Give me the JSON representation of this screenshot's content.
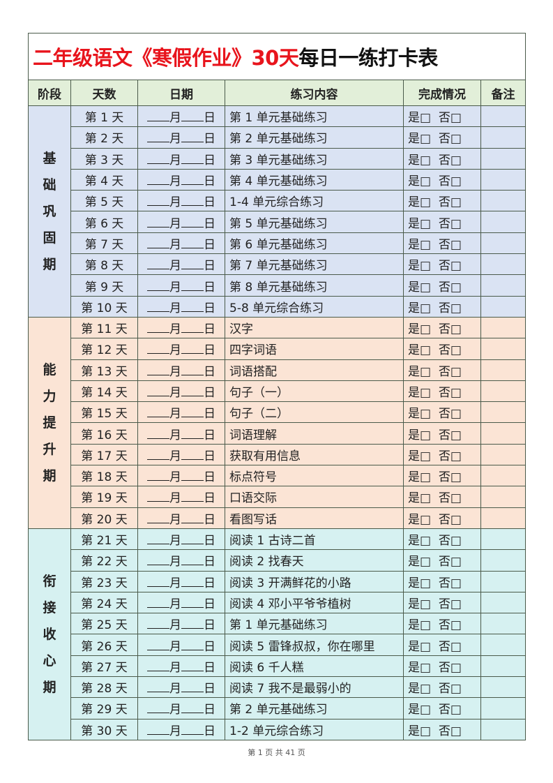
{
  "title": {
    "red_part": "二年级语文《寒假作业》30天",
    "black_part": "每日一练打卡表"
  },
  "headers": [
    "阶段",
    "天数",
    "日期",
    "练习内容",
    "完成情况",
    "备注"
  ],
  "date_template": {
    "month": "月",
    "day": "日"
  },
  "status_options": {
    "yes": "是□",
    "no": "否□"
  },
  "colors": {
    "title_red": "#e8141c",
    "header_bg": "#e2efd9",
    "stage1_bg": "#dae3f3",
    "stage2_bg": "#fbe4d5",
    "stage3_bg": "#d6f1f1"
  },
  "stages": [
    {
      "name": "基础巩固期",
      "rows": [
        {
          "day": "第 1 天",
          "content": "第 1 单元基础练习"
        },
        {
          "day": "第 2 天",
          "content": "第 2 单元基础练习"
        },
        {
          "day": "第 3 天",
          "content": "第 3 单元基础练习"
        },
        {
          "day": "第 4 天",
          "content": "第 4 单元基础练习"
        },
        {
          "day": "第 5 天",
          "content": "1-4 单元综合练习"
        },
        {
          "day": "第 6 天",
          "content": "第 5 单元基础练习"
        },
        {
          "day": "第 7 天",
          "content": "第 6 单元基础练习"
        },
        {
          "day": "第 8 天",
          "content": "第 7 单元基础练习"
        },
        {
          "day": "第 9 天",
          "content": "第 8 单元基础练习"
        },
        {
          "day": "第 10 天",
          "content": "5-8 单元综合练习"
        }
      ]
    },
    {
      "name": "能力提升期",
      "rows": [
        {
          "day": "第 11 天",
          "content": "汉字"
        },
        {
          "day": "第 12 天",
          "content": "四字词语"
        },
        {
          "day": "第 13 天",
          "content": "词语搭配"
        },
        {
          "day": "第 14 天",
          "content": "句子（一）"
        },
        {
          "day": "第 15 天",
          "content": "句子（二）"
        },
        {
          "day": "第 16 天",
          "content": "词语理解"
        },
        {
          "day": "第 17 天",
          "content": "获取有用信息"
        },
        {
          "day": "第 18 天",
          "content": "标点符号"
        },
        {
          "day": "第 19 天",
          "content": "口语交际"
        },
        {
          "day": "第 20 天",
          "content": "看图写话"
        }
      ]
    },
    {
      "name": "衔接收心期",
      "rows": [
        {
          "day": "第 21 天",
          "content": "阅读 1  古诗二首"
        },
        {
          "day": "第 22 天",
          "content": "阅读 2  找春天"
        },
        {
          "day": "第 23 天",
          "content": "阅读 3  开满鲜花的小路"
        },
        {
          "day": "第 24 天",
          "content": "阅读 4  邓小平爷爷植树"
        },
        {
          "day": "第 25 天",
          "content": "第 1 单元基础练习"
        },
        {
          "day": "第 26 天",
          "content": "阅读 5  雷锋叔叔，你在哪里"
        },
        {
          "day": "第 27 天",
          "content": "阅读 6  千人糕"
        },
        {
          "day": "第 28 天",
          "content": "阅读 7  我不是最弱小的"
        },
        {
          "day": "第 29 天",
          "content": "第 2 单元基础练习"
        },
        {
          "day": "第 30 天",
          "content": "1-2 单元综合练习"
        }
      ]
    }
  ],
  "footer": "第 1 页 共 41 页"
}
